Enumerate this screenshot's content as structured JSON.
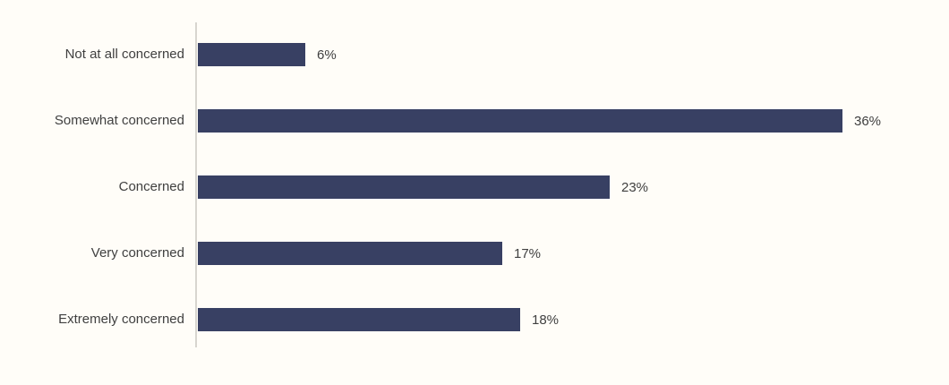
{
  "chart_data": {
    "type": "bar",
    "orientation": "horizontal",
    "title": "",
    "xlabel": "",
    "ylabel": "",
    "categories": [
      "Not at all concerned",
      "Somewhat concerned",
      "Concerned",
      "Very concerned",
      "Extremely concerned"
    ],
    "values": [
      6,
      36,
      23,
      17,
      18
    ],
    "value_labels": [
      "6%",
      "36%",
      "23%",
      "17%",
      "18%"
    ],
    "xlim": [
      0,
      40
    ],
    "grid": false,
    "legend": false,
    "colors": {
      "bar": "#384063",
      "axis_line": "#D8D5CF",
      "label_text": "#404040",
      "background": "#FFFDF8"
    }
  }
}
